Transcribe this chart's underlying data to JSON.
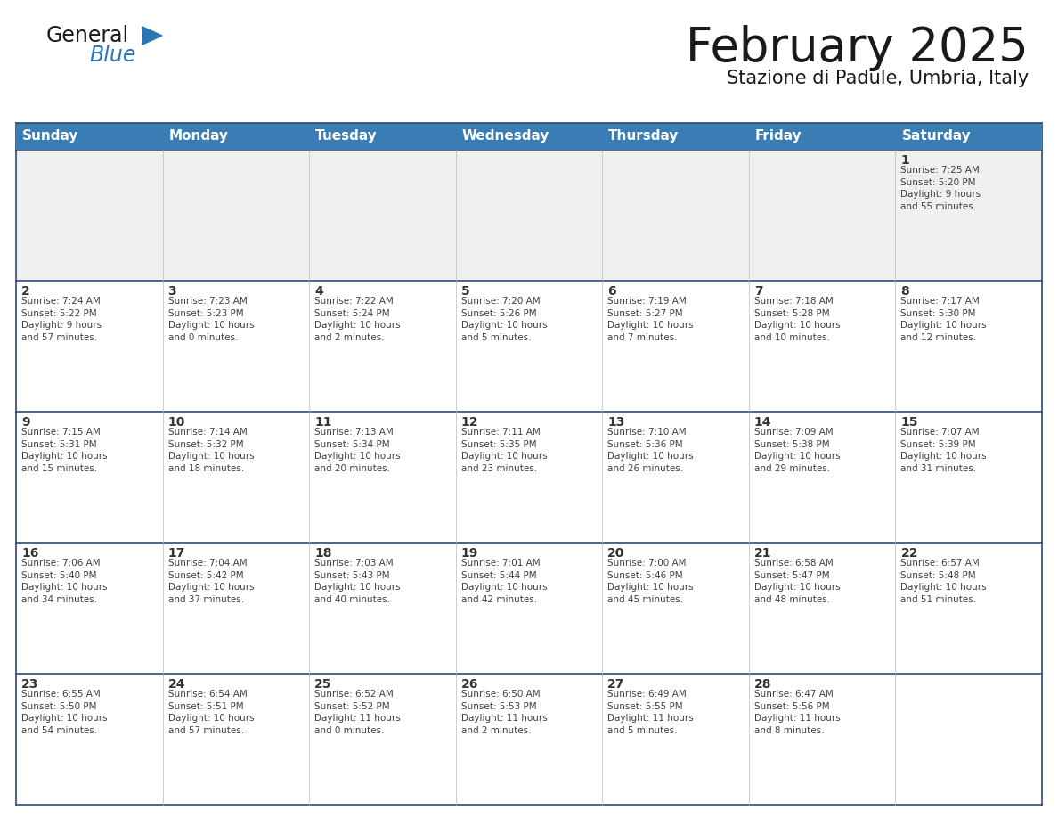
{
  "title": "February 2025",
  "subtitle": "Stazione di Padule, Umbria, Italy",
  "header_bg": "#3A7DB5",
  "header_text_color": "#FFFFFF",
  "row_border_color": "#2E4A7A",
  "day_number_color": "#333333",
  "info_text_color": "#404040",
  "background_color": "#FFFFFF",
  "first_row_bg": "#EFEFEF",
  "other_row_bg": "#FFFFFF",
  "days_of_week": [
    "Sunday",
    "Monday",
    "Tuesday",
    "Wednesday",
    "Thursday",
    "Friday",
    "Saturday"
  ],
  "weeks": [
    [
      {
        "day": "",
        "info": ""
      },
      {
        "day": "",
        "info": ""
      },
      {
        "day": "",
        "info": ""
      },
      {
        "day": "",
        "info": ""
      },
      {
        "day": "",
        "info": ""
      },
      {
        "day": "",
        "info": ""
      },
      {
        "day": "1",
        "info": "Sunrise: 7:25 AM\nSunset: 5:20 PM\nDaylight: 9 hours\nand 55 minutes."
      }
    ],
    [
      {
        "day": "2",
        "info": "Sunrise: 7:24 AM\nSunset: 5:22 PM\nDaylight: 9 hours\nand 57 minutes."
      },
      {
        "day": "3",
        "info": "Sunrise: 7:23 AM\nSunset: 5:23 PM\nDaylight: 10 hours\nand 0 minutes."
      },
      {
        "day": "4",
        "info": "Sunrise: 7:22 AM\nSunset: 5:24 PM\nDaylight: 10 hours\nand 2 minutes."
      },
      {
        "day": "5",
        "info": "Sunrise: 7:20 AM\nSunset: 5:26 PM\nDaylight: 10 hours\nand 5 minutes."
      },
      {
        "day": "6",
        "info": "Sunrise: 7:19 AM\nSunset: 5:27 PM\nDaylight: 10 hours\nand 7 minutes."
      },
      {
        "day": "7",
        "info": "Sunrise: 7:18 AM\nSunset: 5:28 PM\nDaylight: 10 hours\nand 10 minutes."
      },
      {
        "day": "8",
        "info": "Sunrise: 7:17 AM\nSunset: 5:30 PM\nDaylight: 10 hours\nand 12 minutes."
      }
    ],
    [
      {
        "day": "9",
        "info": "Sunrise: 7:15 AM\nSunset: 5:31 PM\nDaylight: 10 hours\nand 15 minutes."
      },
      {
        "day": "10",
        "info": "Sunrise: 7:14 AM\nSunset: 5:32 PM\nDaylight: 10 hours\nand 18 minutes."
      },
      {
        "day": "11",
        "info": "Sunrise: 7:13 AM\nSunset: 5:34 PM\nDaylight: 10 hours\nand 20 minutes."
      },
      {
        "day": "12",
        "info": "Sunrise: 7:11 AM\nSunset: 5:35 PM\nDaylight: 10 hours\nand 23 minutes."
      },
      {
        "day": "13",
        "info": "Sunrise: 7:10 AM\nSunset: 5:36 PM\nDaylight: 10 hours\nand 26 minutes."
      },
      {
        "day": "14",
        "info": "Sunrise: 7:09 AM\nSunset: 5:38 PM\nDaylight: 10 hours\nand 29 minutes."
      },
      {
        "day": "15",
        "info": "Sunrise: 7:07 AM\nSunset: 5:39 PM\nDaylight: 10 hours\nand 31 minutes."
      }
    ],
    [
      {
        "day": "16",
        "info": "Sunrise: 7:06 AM\nSunset: 5:40 PM\nDaylight: 10 hours\nand 34 minutes."
      },
      {
        "day": "17",
        "info": "Sunrise: 7:04 AM\nSunset: 5:42 PM\nDaylight: 10 hours\nand 37 minutes."
      },
      {
        "day": "18",
        "info": "Sunrise: 7:03 AM\nSunset: 5:43 PM\nDaylight: 10 hours\nand 40 minutes."
      },
      {
        "day": "19",
        "info": "Sunrise: 7:01 AM\nSunset: 5:44 PM\nDaylight: 10 hours\nand 42 minutes."
      },
      {
        "day": "20",
        "info": "Sunrise: 7:00 AM\nSunset: 5:46 PM\nDaylight: 10 hours\nand 45 minutes."
      },
      {
        "day": "21",
        "info": "Sunrise: 6:58 AM\nSunset: 5:47 PM\nDaylight: 10 hours\nand 48 minutes."
      },
      {
        "day": "22",
        "info": "Sunrise: 6:57 AM\nSunset: 5:48 PM\nDaylight: 10 hours\nand 51 minutes."
      }
    ],
    [
      {
        "day": "23",
        "info": "Sunrise: 6:55 AM\nSunset: 5:50 PM\nDaylight: 10 hours\nand 54 minutes."
      },
      {
        "day": "24",
        "info": "Sunrise: 6:54 AM\nSunset: 5:51 PM\nDaylight: 10 hours\nand 57 minutes."
      },
      {
        "day": "25",
        "info": "Sunrise: 6:52 AM\nSunset: 5:52 PM\nDaylight: 11 hours\nand 0 minutes."
      },
      {
        "day": "26",
        "info": "Sunrise: 6:50 AM\nSunset: 5:53 PM\nDaylight: 11 hours\nand 2 minutes."
      },
      {
        "day": "27",
        "info": "Sunrise: 6:49 AM\nSunset: 5:55 PM\nDaylight: 11 hours\nand 5 minutes."
      },
      {
        "day": "28",
        "info": "Sunrise: 6:47 AM\nSunset: 5:56 PM\nDaylight: 11 hours\nand 8 minutes."
      },
      {
        "day": "",
        "info": ""
      }
    ]
  ],
  "logo_general_color": "#1a1a1a",
  "logo_blue_color": "#2E75B6",
  "title_fontsize": 38,
  "subtitle_fontsize": 15,
  "header_fontsize": 11,
  "day_num_fontsize": 10,
  "info_fontsize": 7.5
}
